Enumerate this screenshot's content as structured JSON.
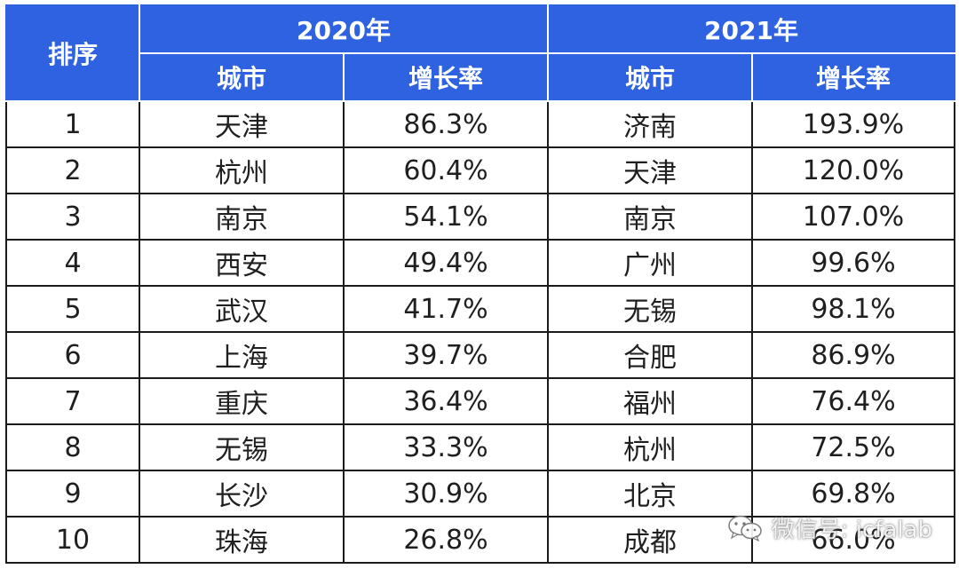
{
  "table": {
    "rank_header": "排序",
    "year_2020": "2020年",
    "year_2021": "2021年",
    "city_header": "城市",
    "rate_header": "增长率",
    "rows": [
      {
        "rank": "1",
        "city2020": "天津",
        "rate2020": "86.3%",
        "city2021": "济南",
        "rate2021": "193.9%"
      },
      {
        "rank": "2",
        "city2020": "杭州",
        "rate2020": "60.4%",
        "city2021": "天津",
        "rate2021": "120.0%"
      },
      {
        "rank": "3",
        "city2020": "南京",
        "rate2020": "54.1%",
        "city2021": "南京",
        "rate2021": "107.0%"
      },
      {
        "rank": "4",
        "city2020": "西安",
        "rate2020": "49.4%",
        "city2021": "广州",
        "rate2021": "99.6%"
      },
      {
        "rank": "5",
        "city2020": "武汉",
        "rate2020": "41.7%",
        "city2021": "无锡",
        "rate2021": "98.1%"
      },
      {
        "rank": "6",
        "city2020": "上海",
        "rate2020": "39.7%",
        "city2021": "合肥",
        "rate2021": "86.9%"
      },
      {
        "rank": "7",
        "city2020": "重庆",
        "rate2020": "36.4%",
        "city2021": "福州",
        "rate2021": "76.4%"
      },
      {
        "rank": "8",
        "city2020": "无锡",
        "rate2020": "33.3%",
        "city2021": "杭州",
        "rate2021": "72.5%"
      },
      {
        "rank": "9",
        "city2020": "长沙",
        "rate2020": "30.9%",
        "city2021": "北京",
        "rate2021": "69.8%"
      },
      {
        "rank": "10",
        "city2020": "珠海",
        "rate2020": "26.8%",
        "city2021": "成都",
        "rate2021": "66.0%"
      }
    ]
  },
  "watermark": {
    "text": "微信号: icfalab",
    "icon": "wechat-icon"
  },
  "colors": {
    "header_bg": "#2e62e0",
    "header_text": "#ffffff",
    "border": "#1b1b1b",
    "body_text": "#1f1f1f"
  }
}
